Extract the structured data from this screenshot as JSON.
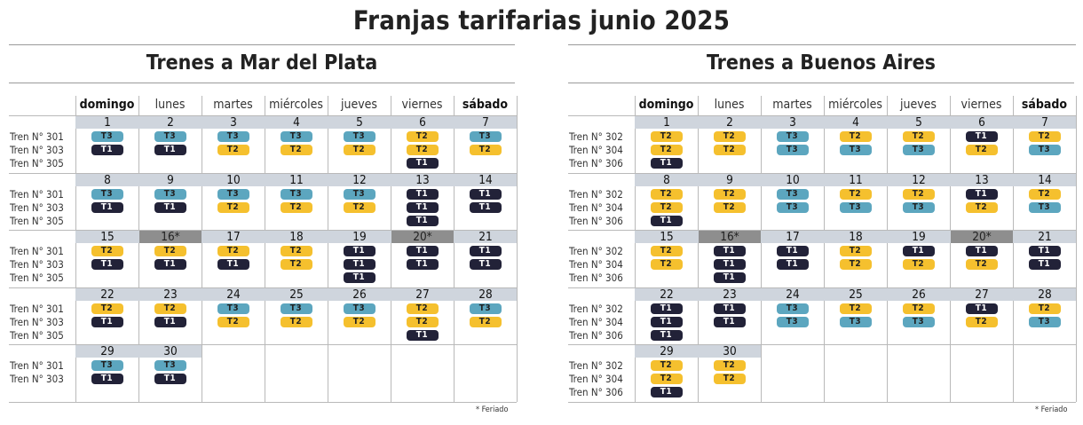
{
  "title": "Franjas tarifarias junio 2025",
  "footnote": "* Feriado",
  "colors": {
    "T1": "#222238",
    "T2": "#f5c02e",
    "T3": "#5ca6bf",
    "date_band": "#cfd5dd",
    "holiday": "#8e8e8e"
  },
  "days": [
    "domingo",
    "lunes",
    "martes",
    "miércoles",
    "jueves",
    "viernes",
    "sábado"
  ],
  "bold_days": [
    0,
    6
  ],
  "sections": [
    {
      "title": "Trenes a Mar del Plata",
      "trains": [
        "Tren N° 301",
        "Tren N° 303",
        "Tren N° 305"
      ],
      "weeks": [
        [
          {
            "date": "1",
            "bands": [
              "T3",
              "T1"
            ]
          },
          {
            "date": "2",
            "bands": [
              "T3",
              "T1"
            ]
          },
          {
            "date": "3",
            "bands": [
              "T3",
              "T2"
            ]
          },
          {
            "date": "4",
            "bands": [
              "T3",
              "T2"
            ]
          },
          {
            "date": "5",
            "bands": [
              "T3",
              "T2"
            ]
          },
          {
            "date": "6",
            "bands": [
              "T2",
              "T2",
              "T1"
            ]
          },
          {
            "date": "7",
            "bands": [
              "T3",
              "T2"
            ]
          }
        ],
        [
          {
            "date": "8",
            "bands": [
              "T3",
              "T1"
            ]
          },
          {
            "date": "9",
            "bands": [
              "T3",
              "T1"
            ]
          },
          {
            "date": "10",
            "bands": [
              "T3",
              "T2"
            ]
          },
          {
            "date": "11",
            "bands": [
              "T3",
              "T2"
            ]
          },
          {
            "date": "12",
            "bands": [
              "T3",
              "T2"
            ]
          },
          {
            "date": "13",
            "bands": [
              "T1",
              "T1",
              "T1"
            ]
          },
          {
            "date": "14",
            "bands": [
              "T1",
              "T1"
            ]
          }
        ],
        [
          {
            "date": "15",
            "bands": [
              "T2",
              "T1"
            ]
          },
          {
            "date": "16*",
            "holiday": true,
            "bands": [
              "T2",
              "T1"
            ]
          },
          {
            "date": "17",
            "bands": [
              "T2",
              "T1"
            ]
          },
          {
            "date": "18",
            "bands": [
              "T2",
              "T2"
            ]
          },
          {
            "date": "19",
            "bands": [
              "T1",
              "T1",
              "T1"
            ]
          },
          {
            "date": "20*",
            "holiday": true,
            "bands": [
              "T1",
              "T1"
            ]
          },
          {
            "date": "21",
            "bands": [
              "T1",
              "T1"
            ]
          }
        ],
        [
          {
            "date": "22",
            "bands": [
              "T2",
              "T1"
            ]
          },
          {
            "date": "23",
            "bands": [
              "T2",
              "T1"
            ]
          },
          {
            "date": "24",
            "bands": [
              "T3",
              "T2"
            ]
          },
          {
            "date": "25",
            "bands": [
              "T3",
              "T2"
            ]
          },
          {
            "date": "26",
            "bands": [
              "T3",
              "T2"
            ]
          },
          {
            "date": "27",
            "bands": [
              "T2",
              "T2",
              "T1"
            ]
          },
          {
            "date": "28",
            "bands": [
              "T3",
              "T2"
            ]
          }
        ],
        [
          {
            "date": "29",
            "bands": [
              "T3",
              "T1"
            ]
          },
          {
            "date": "30",
            "bands": [
              "T3",
              "T1"
            ]
          },
          null,
          null,
          null,
          null,
          null
        ]
      ]
    },
    {
      "title": "Trenes a Buenos Aires",
      "trains": [
        "Tren N° 302",
        "Tren N° 304",
        "Tren N° 306"
      ],
      "weeks": [
        [
          {
            "date": "1",
            "bands": [
              "T2",
              "T2",
              "T1"
            ]
          },
          {
            "date": "2",
            "bands": [
              "T2",
              "T2"
            ]
          },
          {
            "date": "3",
            "bands": [
              "T3",
              "T3"
            ]
          },
          {
            "date": "4",
            "bands": [
              "T2",
              "T3"
            ]
          },
          {
            "date": "5",
            "bands": [
              "T2",
              "T3"
            ]
          },
          {
            "date": "6",
            "bands": [
              "T1",
              "T2"
            ]
          },
          {
            "date": "7",
            "bands": [
              "T2",
              "T3"
            ]
          }
        ],
        [
          {
            "date": "8",
            "bands": [
              "T2",
              "T2",
              "T1"
            ]
          },
          {
            "date": "9",
            "bands": [
              "T2",
              "T2"
            ]
          },
          {
            "date": "10",
            "bands": [
              "T3",
              "T3"
            ]
          },
          {
            "date": "11",
            "bands": [
              "T2",
              "T3"
            ]
          },
          {
            "date": "12",
            "bands": [
              "T2",
              "T3"
            ]
          },
          {
            "date": "13",
            "bands": [
              "T1",
              "T2"
            ]
          },
          {
            "date": "14",
            "bands": [
              "T2",
              "T3"
            ]
          }
        ],
        [
          {
            "date": "15",
            "bands": [
              "T2",
              "T2"
            ]
          },
          {
            "date": "16*",
            "holiday": true,
            "bands": [
              "T1",
              "T1",
              "T1"
            ]
          },
          {
            "date": "17",
            "bands": [
              "T1",
              "T1"
            ]
          },
          {
            "date": "18",
            "bands": [
              "T2",
              "T2"
            ]
          },
          {
            "date": "19",
            "bands": [
              "T1",
              "T2"
            ]
          },
          {
            "date": "20*",
            "holiday": true,
            "bands": [
              "T1",
              "T2"
            ]
          },
          {
            "date": "21",
            "bands": [
              "T1",
              "T1"
            ]
          }
        ],
        [
          {
            "date": "22",
            "bands": [
              "T1",
              "T1",
              "T1"
            ]
          },
          {
            "date": "23",
            "bands": [
              "T1",
              "T1"
            ]
          },
          {
            "date": "24",
            "bands": [
              "T3",
              "T3"
            ]
          },
          {
            "date": "25",
            "bands": [
              "T2",
              "T3"
            ]
          },
          {
            "date": "26",
            "bands": [
              "T2",
              "T3"
            ]
          },
          {
            "date": "27",
            "bands": [
              "T1",
              "T2"
            ]
          },
          {
            "date": "28",
            "bands": [
              "T2",
              "T3"
            ]
          }
        ],
        [
          {
            "date": "29",
            "bands": [
              "T2",
              "T2",
              "T1"
            ]
          },
          {
            "date": "30",
            "bands": [
              "T2",
              "T2"
            ]
          },
          null,
          null,
          null,
          null,
          null
        ]
      ]
    }
  ]
}
